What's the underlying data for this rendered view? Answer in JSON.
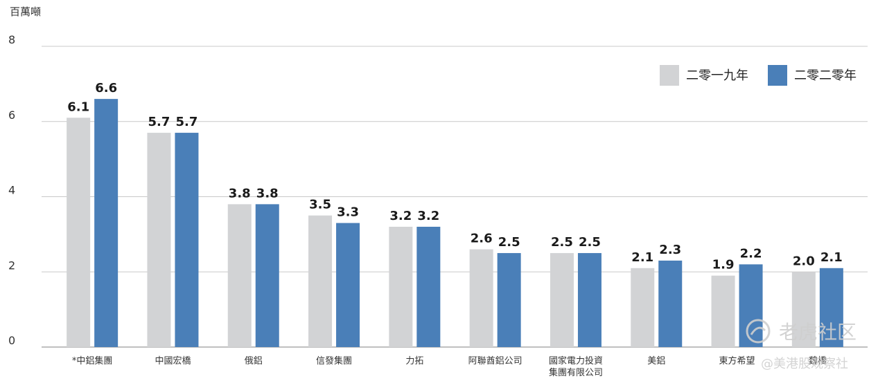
{
  "chart_data": {
    "type": "bar",
    "unit_label": "百萬噸",
    "categories": [
      [
        "*中鋁集團"
      ],
      [
        "中國宏橋"
      ],
      [
        "俄鋁"
      ],
      [
        "信發集團"
      ],
      [
        "力拓"
      ],
      [
        "阿聯酋鋁公司"
      ],
      [
        "國家電力投資",
        "集團有限公司"
      ],
      [
        "美鋁"
      ],
      [
        "東方希望"
      ],
      [
        "魏橋"
      ]
    ],
    "series": [
      {
        "name": "二零一九年",
        "color": "#d2d3d5",
        "values": [
          6.1,
          5.7,
          3.8,
          3.5,
          3.2,
          2.6,
          2.5,
          2.1,
          1.9,
          2.0
        ],
        "labels": [
          "6.1",
          "5.7",
          "3.8",
          "3.5",
          "3.2",
          "2.6",
          "2.5",
          "2.1",
          "1.9",
          "2.0"
        ]
      },
      {
        "name": "二零二零年",
        "color": "#4a7fb8",
        "values": [
          6.6,
          5.7,
          3.8,
          3.3,
          3.2,
          2.5,
          2.5,
          2.3,
          2.2,
          2.1
        ],
        "labels": [
          "6.6",
          "5.7",
          "3.8",
          "3.3",
          "3.2",
          "2.5",
          "2.5",
          "2.3",
          "2.2",
          "2.1"
        ]
      }
    ],
    "yticks": [
      "0",
      "2",
      "4",
      "6",
      "8"
    ],
    "ylim": [
      0,
      8
    ],
    "grid": true,
    "legend_position": "top-right"
  },
  "watermark": {
    "brand": "老虎社区",
    "handle": "@美港股观察社"
  }
}
